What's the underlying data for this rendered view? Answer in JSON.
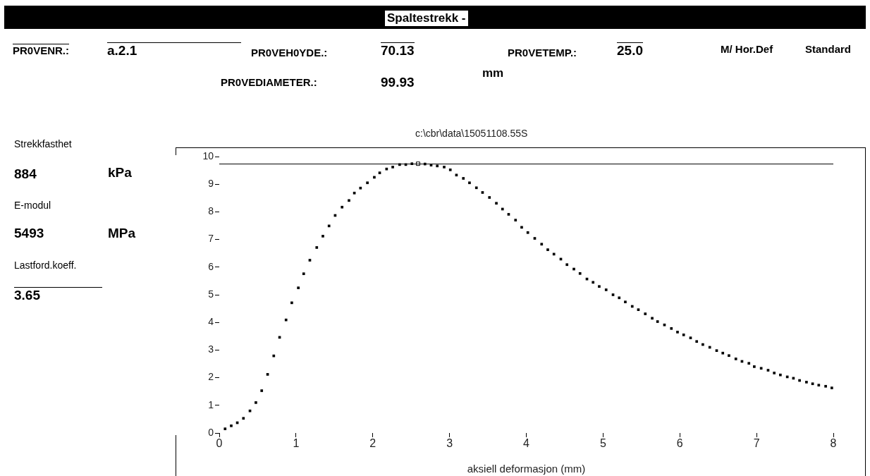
{
  "chart_data": {
    "type": "scatter",
    "title": "Spaltestrekk -",
    "subtitle": "c:\\cbr\\data\\15051108.55S",
    "xlabel": "aksiell deformasjon (mm)",
    "annotations": [
      "PR0VENR.:",
      "a.2.1",
      "PR0VEH0YDE.:",
      "70.13",
      "PR0VETEMP.:",
      "25.0",
      "M/ Hor.Def",
      "Standard",
      "PR0VEDIAMETER.:",
      "99.93",
      "mm",
      "Strekkfasthet",
      "884",
      "kPa",
      "E-modul",
      "5493",
      "MPa",
      "Lastford.koeff.",
      "3.65"
    ],
    "xlim": [
      0,
      8
    ],
    "xticks": [
      0,
      1,
      2,
      3,
      4,
      5,
      6,
      7,
      8
    ],
    "ylim": [
      0,
      10
    ],
    "yticks": [
      0,
      1,
      2,
      3,
      4,
      5,
      6,
      7,
      8,
      9,
      10
    ],
    "grid": false,
    "legend": false,
    "marker": "square",
    "ref_lines": [
      {
        "axis": "y",
        "value": 9.73,
        "color": "#000000"
      }
    ],
    "series": [
      {
        "color": "#000000",
        "x": [
          0.076,
          0.156,
          0.235,
          0.315,
          0.4,
          0.477,
          0.553,
          0.63,
          0.71,
          0.786,
          0.87,
          0.945,
          1.03,
          1.1,
          1.18,
          1.27,
          1.35,
          1.43,
          1.51,
          1.6,
          1.69,
          1.76,
          1.84,
          1.93,
          2.02,
          2.09,
          2.18,
          2.26,
          2.35,
          2.43,
          2.51,
          2.68,
          2.76,
          2.84,
          2.93,
          3.01,
          3.09,
          3.18,
          3.26,
          3.35,
          3.43,
          3.52,
          3.61,
          3.69,
          3.77,
          3.86,
          3.94,
          4.02,
          4.11,
          4.2,
          4.28,
          4.36,
          4.45,
          4.53,
          4.62,
          4.7,
          4.79,
          4.87,
          4.95,
          5.04,
          5.13,
          5.21,
          5.29,
          5.38,
          5.46,
          5.55,
          5.64,
          5.71,
          5.8,
          5.89,
          5.97,
          6.05,
          6.14,
          6.22,
          6.3,
          6.39,
          6.48,
          6.56,
          6.64,
          6.73,
          6.81,
          6.9,
          6.97,
          7.06,
          7.15,
          7.23,
          7.31,
          7.4,
          7.48,
          7.56,
          7.65,
          7.73,
          7.81,
          7.9,
          7.98
        ],
        "values": [
          0.15,
          0.26,
          0.37,
          0.53,
          0.8,
          1.1,
          1.53,
          2.12,
          2.79,
          3.46,
          4.09,
          4.71,
          5.25,
          5.76,
          6.25,
          6.71,
          7.12,
          7.49,
          7.87,
          8.17,
          8.41,
          8.68,
          8.86,
          9.05,
          9.25,
          9.41,
          9.55,
          9.62,
          9.71,
          9.71,
          9.74,
          9.73,
          9.69,
          9.66,
          9.62,
          9.52,
          9.33,
          9.21,
          9.05,
          8.87,
          8.7,
          8.52,
          8.31,
          8.1,
          7.91,
          7.7,
          7.44,
          7.25,
          7.04,
          6.83,
          6.63,
          6.47,
          6.29,
          6.09,
          5.93,
          5.77,
          5.57,
          5.45,
          5.3,
          5.18,
          5.0,
          4.89,
          4.74,
          4.58,
          4.46,
          4.31,
          4.15,
          4.03,
          3.91,
          3.78,
          3.65,
          3.55,
          3.44,
          3.31,
          3.2,
          3.1,
          2.98,
          2.89,
          2.8,
          2.68,
          2.59,
          2.52,
          2.4,
          2.34,
          2.27,
          2.17,
          2.1,
          2.03,
          1.98,
          1.9,
          1.84,
          1.78,
          1.73,
          1.69,
          1.63
        ]
      },
      {
        "color": "#000000",
        "marker": "square",
        "x": [
          2.59
        ],
        "values": [
          9.74
        ]
      }
    ]
  }
}
